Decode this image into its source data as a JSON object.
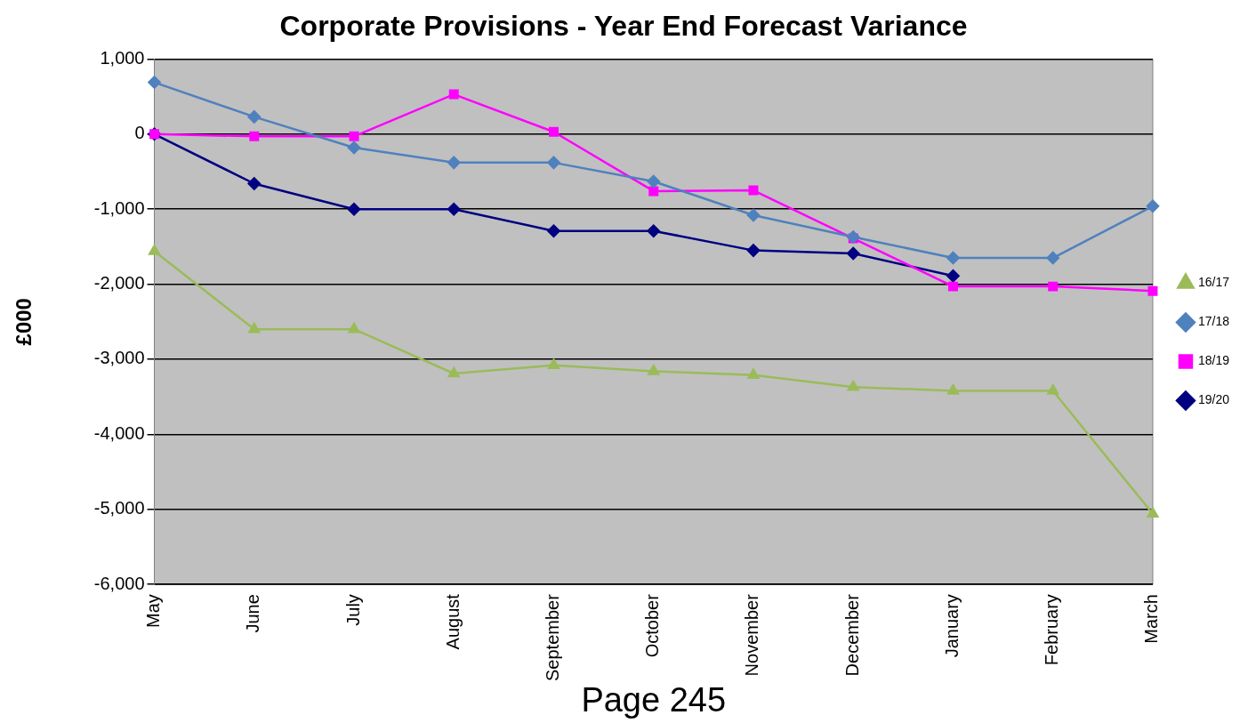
{
  "chart_data": {
    "type": "line",
    "title": "Corporate Provisions - Year End Forecast Variance",
    "ylabel": "£000",
    "categories": [
      "May",
      "June",
      "July",
      "August",
      "September",
      "October",
      "November",
      "December",
      "January",
      "February",
      "March"
    ],
    "series": [
      {
        "name": "19/20",
        "color": "#000080",
        "marker": "diamond",
        "values": [
          0,
          -660,
          -1000,
          -1000,
          -1290,
          -1290,
          -1550,
          -1590,
          -1890,
          null,
          null
        ]
      },
      {
        "name": "18/19",
        "color": "#ff00ff",
        "marker": "square",
        "values": [
          0,
          -30,
          -30,
          530,
          30,
          -760,
          -750,
          -1390,
          -2030,
          -2030,
          -2090
        ]
      },
      {
        "name": "17/18",
        "color": "#4f81bd",
        "marker": "diamond",
        "values": [
          690,
          230,
          -180,
          -380,
          -380,
          -630,
          -1080,
          -1370,
          -1650,
          -1650,
          -960
        ]
      },
      {
        "name": "16/17",
        "color": "#9bbb59",
        "marker": "triangle",
        "values": [
          -1560,
          -2600,
          -2600,
          -3190,
          -3080,
          -3160,
          -3210,
          -3370,
          -3420,
          -3420,
          -5060
        ]
      }
    ],
    "ylim": [
      -6000,
      1000
    ],
    "yticks": [
      {
        "value": -6000,
        "label": "-6,000"
      },
      {
        "value": -5000,
        "label": "-5,000"
      },
      {
        "value": -4000,
        "label": "-4,000"
      },
      {
        "value": -3000,
        "label": "-3,000"
      },
      {
        "value": -2000,
        "label": "-2,000"
      },
      {
        "value": -1000,
        "label": "-1,000"
      },
      0,
      {
        "value": 1000,
        "label": "1,000"
      }
    ],
    "grid": "y",
    "legend": "right",
    "line_style": "solid",
    "annotations": [
      "Page 245"
    ]
  }
}
